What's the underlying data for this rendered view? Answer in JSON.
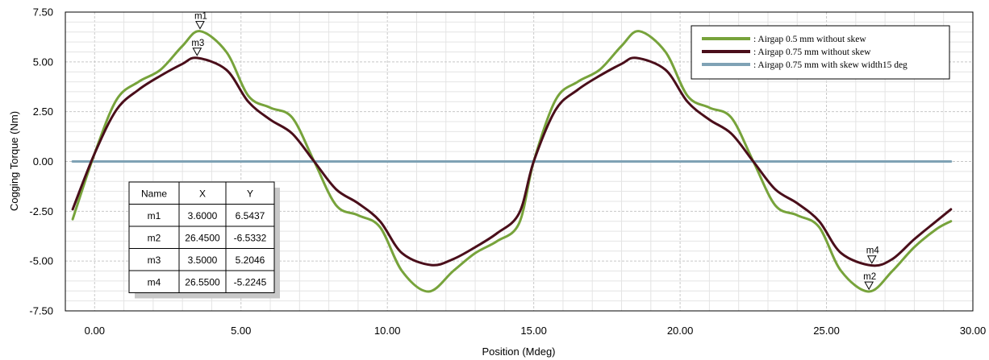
{
  "chart_data": {
    "type": "line",
    "xlabel": "Position (Mdeg)",
    "ylabel": "Cogging Torque (Nm)",
    "xlim": [
      -1,
      30
    ],
    "ylim": [
      -7.5,
      7.5
    ],
    "x_ticks": [
      "0.00",
      "5.00",
      "10.00",
      "15.00",
      "20.00",
      "25.00",
      "30.00"
    ],
    "y_ticks": [
      "7.50",
      "5.00",
      "2.50",
      "0.00",
      "-2.50",
      "-5.00",
      "-7.50"
    ],
    "grid": true,
    "legend_position": "top-right",
    "series": [
      {
        "name": ": Airgap 0.5 mm without skew",
        "color": "#77A33B",
        "x": [
          -0.75,
          0,
          0.75,
          1.5,
          2.25,
          3,
          3.6,
          4.5,
          5.25,
          6,
          6.75,
          7.5,
          8.25,
          9,
          9.75,
          10.5,
          11.4,
          12.25,
          13,
          13.75,
          14.5,
          15,
          15.75,
          16.5,
          17.25,
          18,
          18.6,
          19.5,
          20.25,
          21,
          21.75,
          22.5,
          23.25,
          24,
          24.75,
          25.5,
          26.45,
          27.25,
          28,
          28.75,
          29.25
        ],
        "values": [
          -2.9,
          0.4,
          3.1,
          4.0,
          4.6,
          5.8,
          6.54,
          5.5,
          3.3,
          2.7,
          2.2,
          0.0,
          -2.2,
          -2.7,
          -3.3,
          -5.5,
          -6.53,
          -5.5,
          -4.6,
          -4.0,
          -3.1,
          0.0,
          3.1,
          4.0,
          4.6,
          5.8,
          6.54,
          5.5,
          3.3,
          2.7,
          2.2,
          0.0,
          -2.2,
          -2.7,
          -3.3,
          -5.5,
          -6.53,
          -5.5,
          -4.3,
          -3.4,
          -3.0
        ]
      },
      {
        "name": ": Airgap 0.75 mm without skew",
        "color": "#4A0E1A",
        "x": [
          -0.75,
          0,
          0.75,
          1.5,
          2.25,
          3,
          3.5,
          4.5,
          5.25,
          6,
          6.75,
          7.5,
          8.25,
          9,
          9.75,
          10.5,
          11.5,
          12.25,
          13,
          13.75,
          14.5,
          15,
          15.75,
          16.5,
          17.25,
          18,
          18.5,
          19.5,
          20.25,
          21,
          21.75,
          22.5,
          23.25,
          24,
          24.75,
          25.5,
          26.55,
          27.25,
          28,
          28.75,
          29.25
        ],
        "values": [
          -2.4,
          0.4,
          2.6,
          3.6,
          4.3,
          4.9,
          5.2,
          4.6,
          3.0,
          2.1,
          1.4,
          0.0,
          -1.4,
          -2.1,
          -3.0,
          -4.6,
          -5.2,
          -4.9,
          -4.3,
          -3.6,
          -2.6,
          0.0,
          2.6,
          3.6,
          4.3,
          4.9,
          5.2,
          4.6,
          3.0,
          2.1,
          1.4,
          0.0,
          -1.4,
          -2.1,
          -3.0,
          -4.6,
          -5.22,
          -4.9,
          -3.9,
          -3.0,
          -2.4
        ]
      },
      {
        "name": ": Airgap 0.75 mm with skew width15 deg",
        "color": "#7FA2B5",
        "x": [
          -0.75,
          29.25
        ],
        "values": [
          0.0,
          0.0
        ]
      }
    ],
    "markers": [
      {
        "name": "m1",
        "x": 3.6,
        "y": 6.5437,
        "series": 0,
        "label_side": "above"
      },
      {
        "name": "m3",
        "x": 3.5,
        "y": 5.2046,
        "series": 1,
        "label_side": "above"
      },
      {
        "name": "m4",
        "x": 26.55,
        "y": -5.2245,
        "series": 1,
        "label_side": "above"
      },
      {
        "name": "m2",
        "x": 26.45,
        "y": -6.5332,
        "series": 0,
        "label_side": "above"
      }
    ],
    "marker_table": {
      "headers": [
        "Name",
        "X",
        "Y"
      ],
      "rows": [
        [
          "m1",
          "3.6000",
          "6.5437"
        ],
        [
          "m2",
          "26.4500",
          "-6.5332"
        ],
        [
          "m3",
          "3.5000",
          "5.2046"
        ],
        [
          "m4",
          "26.5500",
          "-5.2245"
        ]
      ]
    }
  }
}
